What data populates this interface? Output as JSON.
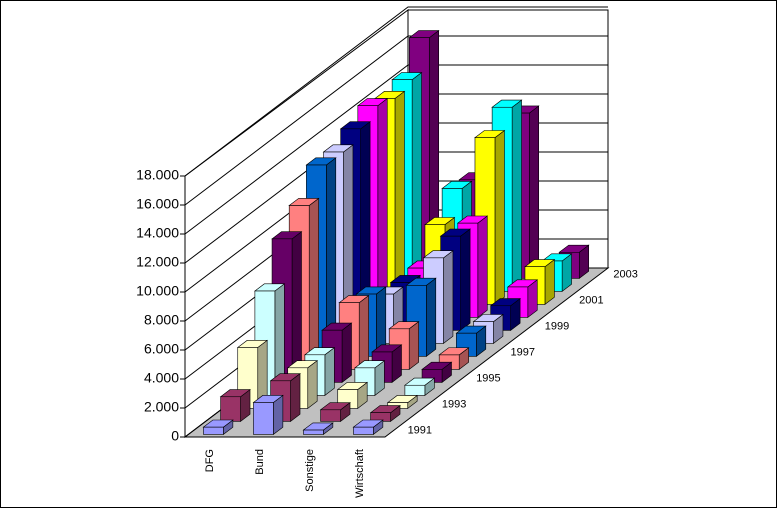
{
  "chart_data": {
    "type": "bar3d",
    "categories": [
      "DFG",
      "Bund",
      "Sonstige",
      "Wirtschaft"
    ],
    "series": [
      {
        "name": "1991",
        "color": "#9999ff",
        "values": [
          500,
          2200,
          300,
          500
        ]
      },
      {
        "name": null,
        "color": "#993366",
        "values": [
          1700,
          2800,
          800,
          600
        ]
      },
      {
        "name": "1993",
        "color": "#ffffcc",
        "values": [
          4200,
          2800,
          1300,
          400
        ]
      },
      {
        "name": null,
        "color": "#ccffff",
        "values": [
          7200,
          2800,
          1900,
          700
        ]
      },
      {
        "name": "1995",
        "color": "#660066",
        "values": [
          9900,
          3600,
          2100,
          900
        ]
      },
      {
        "name": null,
        "color": "#ff8080",
        "values": [
          11300,
          4600,
          2800,
          1000
        ]
      },
      {
        "name": "1997",
        "color": "#0066cc",
        "values": [
          13200,
          4300,
          4900,
          1600
        ]
      },
      {
        "name": null,
        "color": "#ccccff",
        "values": [
          13200,
          3400,
          5900,
          1500
        ]
      },
      {
        "name": "1999",
        "color": "#000080",
        "values": [
          13900,
          3300,
          6500,
          1700
        ]
      },
      {
        "name": null,
        "color": "#ff00ff",
        "values": [
          14600,
          3400,
          6500,
          2100
        ]
      },
      {
        "name": "2001",
        "color": "#ffff00",
        "values": [
          14200,
          5500,
          11500,
          2600
        ]
      },
      {
        "name": null,
        "color": "#00ffff",
        "values": [
          14600,
          7100,
          12700,
          2100
        ]
      },
      {
        "name": "2003",
        "color": "#800080",
        "values": [
          16600,
          6800,
          11400,
          1800
        ]
      }
    ],
    "ylim": [
      0,
      18000
    ],
    "yticks": [
      0,
      {
        "value": 2000,
        "label": "2.000"
      },
      {
        "value": 4000,
        "label": "4.000"
      },
      {
        "value": 6000,
        "label": "6.000"
      },
      {
        "value": 8000,
        "label": "8.000"
      },
      {
        "value": 10000,
        "label": "10.000"
      },
      {
        "value": 12000,
        "label": "12.000"
      },
      {
        "value": 14000,
        "label": "14.000"
      },
      {
        "value": 16000,
        "label": "16.000"
      },
      {
        "value": 18000,
        "label": "18.000"
      }
    ],
    "grid": true
  }
}
